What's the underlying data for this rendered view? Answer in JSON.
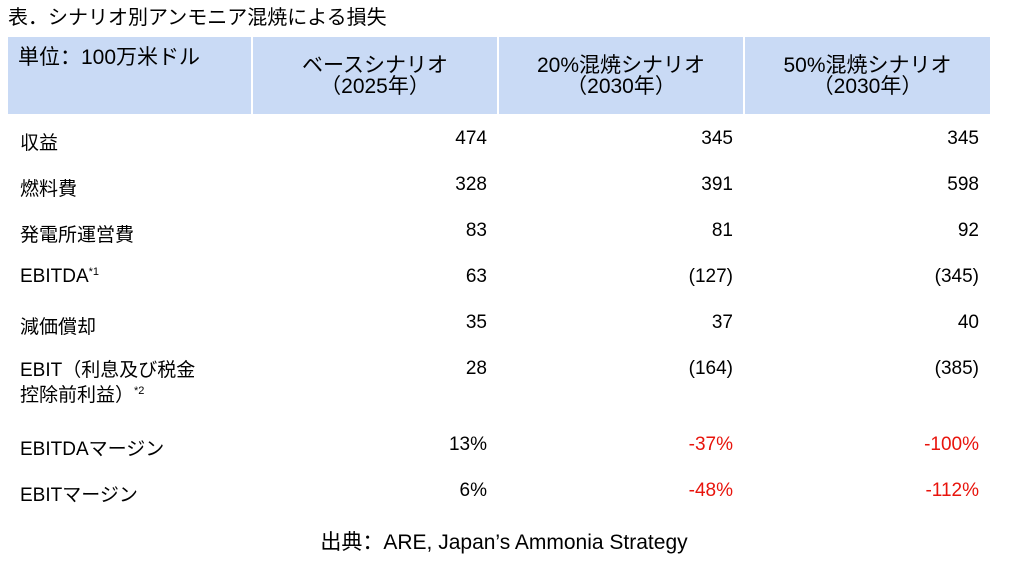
{
  "title": "表．シナリオ別アンモニア混焼による損失",
  "table": {
    "header": [
      {
        "line1": "単位：100万米ドル",
        "line2": ""
      },
      {
        "line1": "ベースシナリオ",
        "line2": "（2025年）"
      },
      {
        "line1": "20%混焼シナリオ",
        "line2": "（2030年）"
      },
      {
        "line1": "50%混焼シナリオ",
        "line2": "（2030年）"
      }
    ],
    "rows": [
      {
        "label": "収益",
        "label2": "",
        "sup": "",
        "base": "474",
        "s20": "345",
        "s50": "345",
        "neg": false
      },
      {
        "label": "燃料費",
        "label2": "",
        "sup": "",
        "base": "328",
        "s20": "391",
        "s50": "598",
        "neg": false
      },
      {
        "label": "発電所運営費",
        "label2": "",
        "sup": "",
        "base": "83",
        "s20": "81",
        "s50": "92",
        "neg": false
      },
      {
        "label": "EBITDA",
        "label2": "",
        "sup": "*1",
        "base": "63",
        "s20": "(127)",
        "s50": "(345)",
        "neg": false
      },
      {
        "label": "減価償却",
        "label2": "",
        "sup": "",
        "base": "35",
        "s20": "37",
        "s50": "40",
        "neg": false
      },
      {
        "label": "EBIT（利息及び税金",
        "label2": "控除前利益）",
        "sup": "*2",
        "base": "28",
        "s20": "(164)",
        "s50": "(385)",
        "neg": false
      },
      {
        "label": "EBITDAマージン",
        "label2": "",
        "sup": "",
        "base": "13%",
        "s20": "-37%",
        "s50": "-100%",
        "neg": true
      },
      {
        "label": "EBITマージン",
        "label2": "",
        "sup": "",
        "base": "6%",
        "s20": "-48%",
        "s50": "-112%",
        "neg": true
      }
    ]
  },
  "colors": {
    "header_bg": "#c9daf5",
    "negative": "#e8140c"
  },
  "source": "出典：ARE, Japan’s Ammonia Strategy"
}
